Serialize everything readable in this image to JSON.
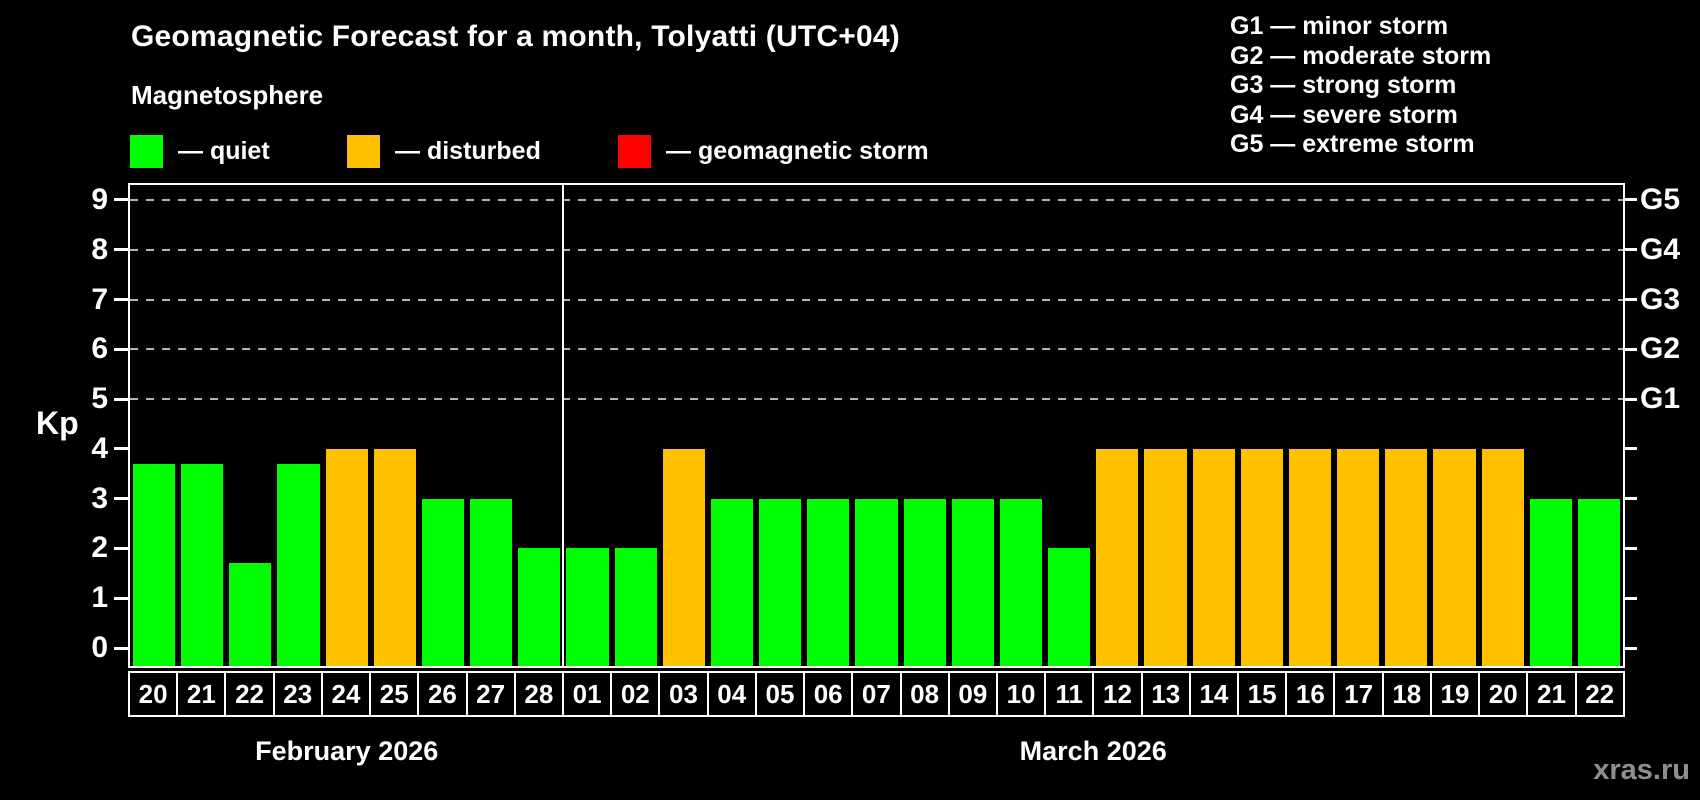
{
  "title": "Geomagnetic Forecast for a month, Tolyatti (UTC+04)",
  "subtitle": "Magnetosphere",
  "legend": {
    "separator": "—",
    "items": [
      {
        "label": "quiet",
        "level": "quiet"
      },
      {
        "label": "disturbed",
        "level": "disturbed"
      },
      {
        "label": "geomagnetic storm",
        "level": "storm"
      }
    ]
  },
  "gscale_legend": [
    {
      "code": "G1",
      "label": "minor storm"
    },
    {
      "code": "G2",
      "label": "moderate storm"
    },
    {
      "code": "G3",
      "label": "strong storm"
    },
    {
      "code": "G4",
      "label": "severe storm"
    },
    {
      "code": "G5",
      "label": "extreme storm"
    }
  ],
  "watermark": "xras.ru",
  "colors": {
    "quiet": "#00ff00",
    "disturbed": "#ffc000",
    "storm": "#ff0000",
    "grid": "#b3b3b3",
    "axis": "#ffffff",
    "watermark": "#8f8f8f",
    "background": "#000000"
  },
  "chart_data": {
    "type": "bar",
    "title": "Geomagnetic Forecast for a month, Tolyatti (UTC+04)",
    "ylabel": "Kp",
    "ylim": [
      -0.37,
      9.4
    ],
    "yticks": [
      0,
      1,
      2,
      3,
      4,
      5,
      6,
      7,
      8,
      9
    ],
    "grid_at_kp": [
      5,
      6,
      7,
      8,
      9
    ],
    "grid_style": "dashed",
    "legend_position": "top",
    "right_axis_labels": [
      {
        "label": "G1",
        "kp": 5
      },
      {
        "label": "G2",
        "kp": 6
      },
      {
        "label": "G3",
        "kp": 7
      },
      {
        "label": "G4",
        "kp": 8
      },
      {
        "label": "G5",
        "kp": 9
      }
    ],
    "months": [
      {
        "label": "February 2026",
        "bars": [
          {
            "day": "20",
            "kp": 3.7,
            "level": "quiet"
          },
          {
            "day": "21",
            "kp": 3.7,
            "level": "quiet"
          },
          {
            "day": "22",
            "kp": 1.7,
            "level": "quiet"
          },
          {
            "day": "23",
            "kp": 3.7,
            "level": "quiet"
          },
          {
            "day": "24",
            "kp": 4.0,
            "level": "disturbed"
          },
          {
            "day": "25",
            "kp": 4.0,
            "level": "disturbed"
          },
          {
            "day": "26",
            "kp": 3.0,
            "level": "quiet"
          },
          {
            "day": "27",
            "kp": 3.0,
            "level": "quiet"
          },
          {
            "day": "28",
            "kp": 2.0,
            "level": "quiet"
          }
        ]
      },
      {
        "label": "March 2026",
        "bars": [
          {
            "day": "01",
            "kp": 2.0,
            "level": "quiet"
          },
          {
            "day": "02",
            "kp": 2.0,
            "level": "quiet"
          },
          {
            "day": "03",
            "kp": 4.0,
            "level": "disturbed"
          },
          {
            "day": "04",
            "kp": 3.0,
            "level": "quiet"
          },
          {
            "day": "05",
            "kp": 3.0,
            "level": "quiet"
          },
          {
            "day": "06",
            "kp": 3.0,
            "level": "quiet"
          },
          {
            "day": "07",
            "kp": 3.0,
            "level": "quiet"
          },
          {
            "day": "08",
            "kp": 3.0,
            "level": "quiet"
          },
          {
            "day": "09",
            "kp": 3.0,
            "level": "quiet"
          },
          {
            "day": "10",
            "kp": 3.0,
            "level": "quiet"
          },
          {
            "day": "11",
            "kp": 2.0,
            "level": "quiet"
          },
          {
            "day": "12",
            "kp": 4.0,
            "level": "disturbed"
          },
          {
            "day": "13",
            "kp": 4.0,
            "level": "disturbed"
          },
          {
            "day": "14",
            "kp": 4.0,
            "level": "disturbed"
          },
          {
            "day": "15",
            "kp": 4.0,
            "level": "disturbed"
          },
          {
            "day": "16",
            "kp": 4.0,
            "level": "disturbed"
          },
          {
            "day": "17",
            "kp": 4.0,
            "level": "disturbed"
          },
          {
            "day": "18",
            "kp": 4.0,
            "level": "disturbed"
          },
          {
            "day": "19",
            "kp": 4.0,
            "level": "disturbed"
          },
          {
            "day": "20",
            "kp": 4.0,
            "level": "disturbed"
          },
          {
            "day": "21",
            "kp": 3.0,
            "level": "quiet"
          },
          {
            "day": "22",
            "kp": 3.0,
            "level": "quiet"
          }
        ]
      }
    ]
  }
}
